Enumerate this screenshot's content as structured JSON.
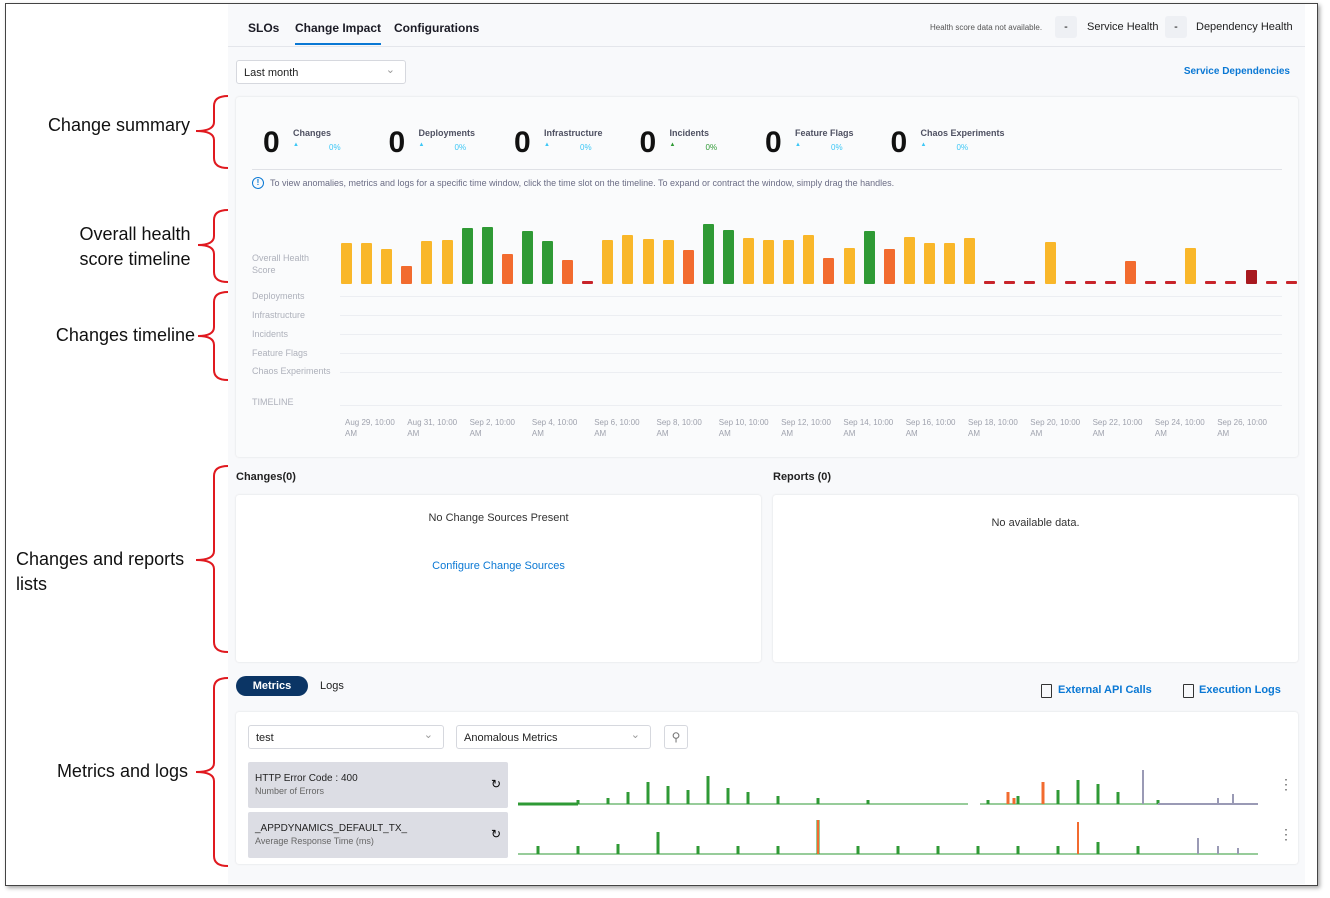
{
  "annotations": [
    "Change summary",
    "Overall health score timeline",
    "Changes timeline",
    "Changes and reports lists",
    "Metrics and logs"
  ],
  "tabs": [
    "SLOs",
    "Change Impact",
    "Configurations"
  ],
  "active_tab_index": 1,
  "header": {
    "health_note": "Health score data not available.",
    "service_health": {
      "value": "-",
      "label": "Service Health"
    },
    "dependency_health": {
      "value": "-",
      "label": "Dependency Health"
    }
  },
  "time_range": "Last month",
  "service_dependencies_link": "Service Dependencies",
  "summary": [
    {
      "count": 0,
      "label": "Changes",
      "change": "0%"
    },
    {
      "count": 0,
      "label": "Deployments",
      "change": "0%"
    },
    {
      "count": 0,
      "label": "Infrastructure",
      "change": "0%"
    },
    {
      "count": 0,
      "label": "Incidents",
      "change": "0%"
    },
    {
      "count": 0,
      "label": "Feature Flags",
      "change": "0%"
    },
    {
      "count": 0,
      "label": "Chaos Experiments",
      "change": "0%"
    }
  ],
  "info_text": "To view anomalies, metrics and logs for a specific time window, click the time slot on the timeline. To expand or contract the window, simply drag the handles.",
  "timeline": {
    "row_labels": [
      "Overall Health Score",
      "Deployments",
      "Infrastructure",
      "Incidents",
      "Feature Flags",
      "Chaos Experiments"
    ],
    "axis_label": "TIMELINE",
    "ylim": [
      0,
      100
    ],
    "health_scores": [
      66,
      66,
      56,
      29,
      69,
      71,
      90,
      92,
      48,
      85,
      69,
      39,
      5,
      71,
      79,
      73,
      71,
      55,
      97,
      87,
      74,
      71,
      71,
      79,
      42,
      58,
      85,
      56,
      76,
      66,
      66,
      74,
      5,
      5,
      5,
      68,
      5,
      5,
      5,
      37,
      5,
      5,
      58,
      5,
      5,
      23,
      5,
      5
    ],
    "health_colors": [
      "#f9b72a",
      "#f9b72a",
      "#f9b72a",
      "#f26b2f",
      "#f9b72a",
      "#f9b72a",
      "#2f9a35",
      "#2f9a35",
      "#f26b2f",
      "#2f9a35",
      "#2f9a35",
      "#f26b2f",
      "#c8242a",
      "#f9b72a",
      "#f9b72a",
      "#f9b72a",
      "#f9b72a",
      "#f26b2f",
      "#2f9a35",
      "#2f9a35",
      "#f9b72a",
      "#f9b72a",
      "#f9b72a",
      "#f9b72a",
      "#f26b2f",
      "#f9b72a",
      "#2f9a35",
      "#f26b2f",
      "#f9b72a",
      "#f9b72a",
      "#f9b72a",
      "#f9b72a",
      "#c8242a",
      "#c8242a",
      "#c8242a",
      "#f9b72a",
      "#c8242a",
      "#c8242a",
      "#c8242a",
      "#f26b2f",
      "#c8242a",
      "#c8242a",
      "#f9b72a",
      "#c8242a",
      "#c8242a",
      "#a8191f",
      "#c8242a",
      "#c8242a"
    ],
    "x_labels": [
      "Aug 29, 10:00 AM",
      "Aug 31, 10:00 AM",
      "Sep 2, 10:00 AM",
      "Sep 4, 10:00 AM",
      "Sep 6, 10:00 AM",
      "Sep 8, 10:00 AM",
      "Sep 10, 10:00 AM",
      "Sep 12, 10:00 AM",
      "Sep 14, 10:00 AM",
      "Sep 16, 10:00 AM",
      "Sep 18, 10:00 AM",
      "Sep 20, 10:00 AM",
      "Sep 22, 10:00 AM",
      "Sep 24, 10:00 AM",
      "Sep 26, 10:00 AM"
    ]
  },
  "changes_panel": {
    "title": "Changes(0)",
    "empty": "No Change Sources Present",
    "link": "Configure Change Sources"
  },
  "reports_panel": {
    "title": "Reports (0)",
    "empty": "No available data."
  },
  "metrics": {
    "tabs": [
      "Metrics",
      "Logs"
    ],
    "external_api": "External API Calls",
    "execution_logs": "Execution Logs",
    "filter": "test",
    "metric_type": "Anomalous Metrics",
    "rows": [
      {
        "name": "HTTP Error Code : 400",
        "subtitle": "Number of Errors"
      },
      {
        "name": "_APPDYNAMICS_DEFAULT_TX_",
        "subtitle": "Average Response Time (ms)"
      }
    ]
  }
}
